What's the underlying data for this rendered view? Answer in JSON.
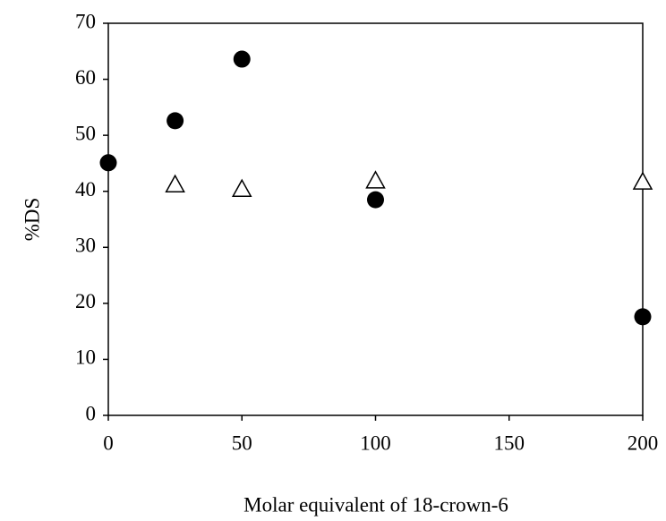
{
  "chart_data": {
    "type": "scatter",
    "xlabel": "Molar equivalent of 18-crown-6",
    "ylabel": "%DS",
    "xlim": [
      0,
      200
    ],
    "xticks": [
      0,
      50,
      100,
      150,
      200
    ],
    "ylim": [
      0,
      70
    ],
    "yticks": [
      0,
      10,
      20,
      30,
      40,
      50,
      60,
      70
    ],
    "series": [
      {
        "marker": "circle",
        "color": "#000000",
        "x": [
          0,
          25,
          50,
          100,
          200
        ],
        "values": [
          45.1,
          52.6,
          63.6,
          38.5,
          17.6
        ]
      },
      {
        "marker": "triangle",
        "color": "#000000",
        "x": [
          25,
          50,
          100,
          200
        ],
        "values": [
          41.2,
          40.4,
          41.9,
          41.7
        ]
      }
    ]
  }
}
